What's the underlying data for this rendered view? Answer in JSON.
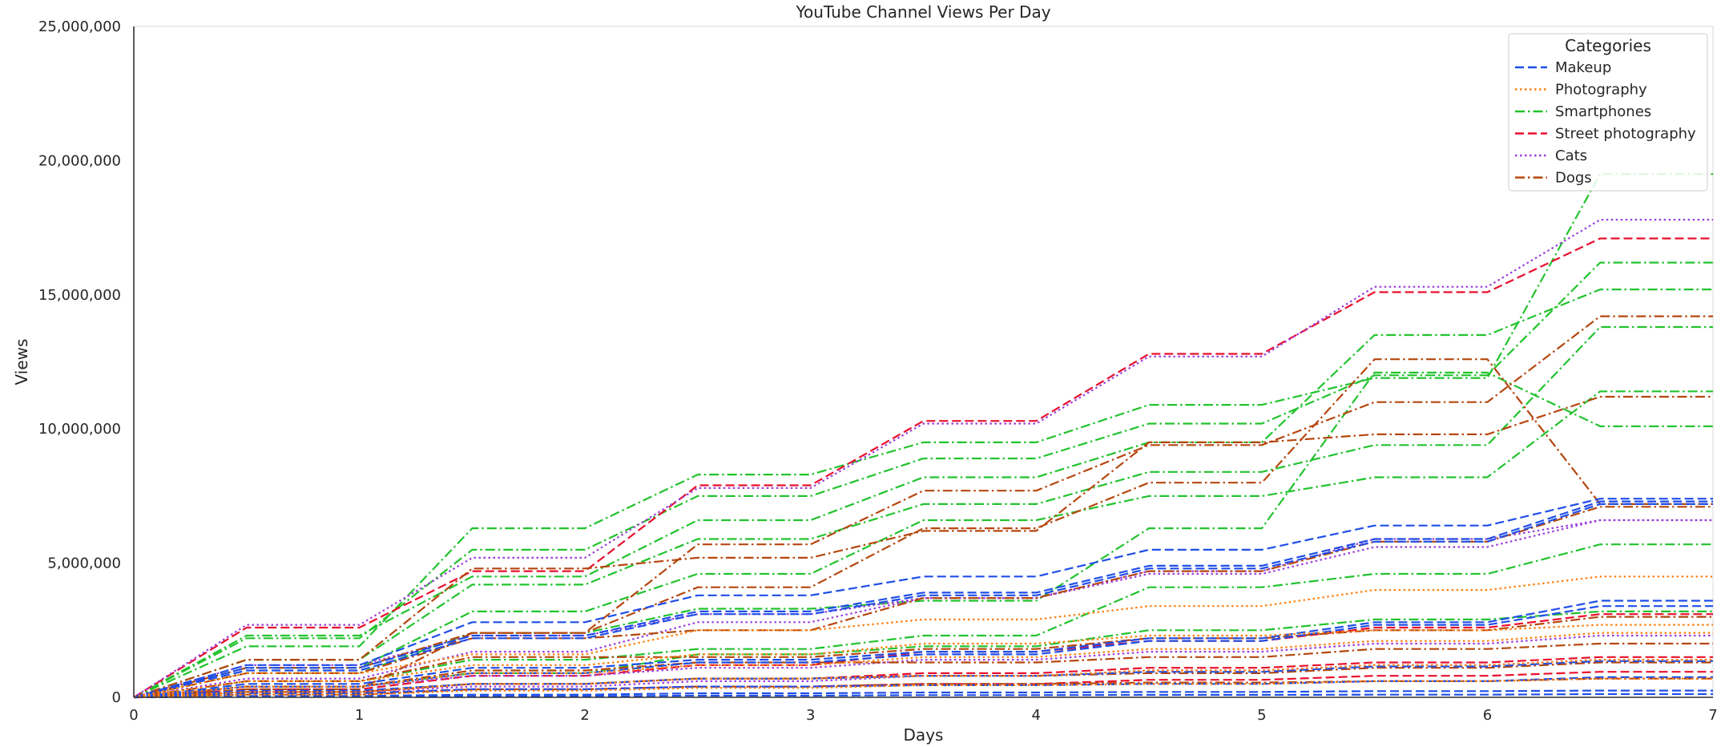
{
  "chart_data": {
    "type": "line",
    "title": "YouTube Channel Views Per Day",
    "xlabel": "Days",
    "ylabel": "Views",
    "xlim": [
      0,
      7
    ],
    "ylim": [
      0,
      25000000
    ],
    "x_ticks": [
      0,
      1,
      2,
      3,
      4,
      5,
      6,
      7
    ],
    "x_tick_labels": [
      "0",
      "1",
      "2",
      "3",
      "4",
      "5",
      "6",
      "7"
    ],
    "y_ticks": [
      0,
      5000000,
      10000000,
      15000000,
      20000000,
      25000000
    ],
    "y_tick_labels": [
      "0",
      "5,000,000",
      "10,000,000",
      "15,000,000",
      "20,000,000",
      "25,000,000"
    ],
    "legend": {
      "title": "Categories",
      "placement": "top-right",
      "entries": [
        {
          "name": "Makeup",
          "color": "#1f4ee8",
          "dash": "dashed"
        },
        {
          "name": "Photography",
          "color": "#ff7f0e",
          "dash": "dotted"
        },
        {
          "name": "Smartphones",
          "color": "#22c32e",
          "dash": "dashdot"
        },
        {
          "name": "Street photography",
          "color": "#e8102d",
          "dash": "dashed"
        },
        {
          "name": "Cats",
          "color": "#9b3ddb",
          "dash": "dotted"
        },
        {
          "name": "Dogs",
          "color": "#b5470f",
          "dash": "dashdot"
        }
      ]
    },
    "x": [
      0,
      0.5,
      1,
      1.5,
      2,
      2.5,
      3,
      3.5,
      4,
      4.5,
      5,
      5.5,
      6,
      6.5,
      7
    ],
    "series": [
      {
        "category": "Smartphones",
        "values": [
          0,
          1900000,
          1900000,
          6300000,
          6300000,
          8300000,
          8300000,
          9500000,
          9500000,
          10900000,
          10900000,
          11900000,
          11900000,
          19500000,
          19500000
        ]
      },
      {
        "category": "Smartphones",
        "values": [
          0,
          2200000,
          2200000,
          5500000,
          5500000,
          7500000,
          7500000,
          8900000,
          8900000,
          10200000,
          10200000,
          12000000,
          12000000,
          16200000,
          16200000
        ]
      },
      {
        "category": "Smartphones",
        "values": [
          0,
          2300000,
          2300000,
          4500000,
          4500000,
          6600000,
          6600000,
          8200000,
          8200000,
          9500000,
          9500000,
          13500000,
          13500000,
          15200000,
          15200000
        ]
      },
      {
        "category": "Smartphones",
        "values": [
          0,
          1400000,
          1400000,
          4200000,
          4200000,
          5900000,
          5900000,
          7200000,
          7200000,
          8400000,
          8400000,
          9400000,
          9400000,
          13800000,
          13800000
        ]
      },
      {
        "category": "Smartphones",
        "values": [
          0,
          1100000,
          1100000,
          3200000,
          3200000,
          4600000,
          4600000,
          6600000,
          6600000,
          7500000,
          7500000,
          8200000,
          8200000,
          11400000,
          11400000
        ]
      },
      {
        "category": "Smartphones",
        "values": [
          0,
          900000,
          900000,
          2400000,
          2400000,
          3300000,
          3300000,
          3600000,
          3600000,
          6300000,
          6300000,
          12100000,
          12100000,
          10100000,
          10100000
        ]
      },
      {
        "category": "Smartphones",
        "values": [
          0,
          600000,
          600000,
          1400000,
          1400000,
          1800000,
          1800000,
          2300000,
          2300000,
          4100000,
          4100000,
          4600000,
          4600000,
          5700000,
          5700000
        ]
      },
      {
        "category": "Smartphones",
        "values": [
          0,
          400000,
          400000,
          900000,
          900000,
          1600000,
          1600000,
          1900000,
          1900000,
          2500000,
          2500000,
          2900000,
          2900000,
          3200000,
          3200000
        ]
      },
      {
        "category": "Street photography",
        "values": [
          0,
          2600000,
          2600000,
          4700000,
          4700000,
          7900000,
          7900000,
          10300000,
          10300000,
          12800000,
          12800000,
          15100000,
          15100000,
          17100000,
          17100000
        ]
      },
      {
        "category": "Street photography",
        "values": [
          0,
          300000,
          300000,
          800000,
          800000,
          1200000,
          1200000,
          1700000,
          1700000,
          2100000,
          2100000,
          2600000,
          2600000,
          3100000,
          3100000
        ]
      },
      {
        "category": "Street photography",
        "values": [
          0,
          200000,
          200000,
          500000,
          500000,
          700000,
          700000,
          900000,
          900000,
          1100000,
          1100000,
          1300000,
          1300000,
          1500000,
          1500000
        ]
      },
      {
        "category": "Street photography",
        "values": [
          0,
          150000,
          150000,
          300000,
          300000,
          400000,
          400000,
          500000,
          500000,
          650000,
          650000,
          800000,
          800000,
          950000,
          950000
        ]
      },
      {
        "category": "Cats",
        "values": [
          0,
          2700000,
          2700000,
          5200000,
          5200000,
          7800000,
          7800000,
          10200000,
          10200000,
          12700000,
          12700000,
          15300000,
          15300000,
          17800000,
          17800000
        ]
      },
      {
        "category": "Cats",
        "values": [
          0,
          1200000,
          1200000,
          2300000,
          2300000,
          3100000,
          3100000,
          3700000,
          3700000,
          4600000,
          4600000,
          5600000,
          5600000,
          6600000,
          6600000
        ]
      },
      {
        "category": "Cats",
        "values": [
          0,
          700000,
          700000,
          1700000,
          1700000,
          2800000,
          2800000,
          3700000,
          3700000,
          4700000,
          4700000,
          5900000,
          5900000,
          6600000,
          6600000
        ]
      },
      {
        "category": "Cats",
        "values": [
          0,
          400000,
          400000,
          800000,
          800000,
          1100000,
          1100000,
          1400000,
          1400000,
          1700000,
          1700000,
          2000000,
          2000000,
          2300000,
          2300000
        ]
      },
      {
        "category": "Cats",
        "values": [
          0,
          200000,
          200000,
          400000,
          400000,
          600000,
          600000,
          800000,
          800000,
          1000000,
          1000000,
          1200000,
          1200000,
          1400000,
          1400000
        ]
      },
      {
        "category": "Dogs",
        "values": [
          0,
          300000,
          300000,
          2400000,
          2400000,
          5700000,
          5700000,
          7700000,
          7700000,
          9400000,
          9400000,
          11000000,
          11000000,
          14200000,
          14200000
        ]
      },
      {
        "category": "Dogs",
        "values": [
          0,
          1400000,
          1400000,
          4800000,
          4800000,
          5200000,
          5200000,
          6200000,
          6200000,
          9500000,
          9500000,
          9800000,
          9800000,
          11200000,
          11200000
        ]
      },
      {
        "category": "Dogs",
        "values": [
          0,
          1100000,
          1100000,
          2400000,
          2400000,
          4100000,
          4100000,
          6300000,
          6300000,
          8000000,
          8000000,
          12600000,
          12600000,
          7200000,
          7200000
        ]
      },
      {
        "category": "Dogs",
        "values": [
          0,
          900000,
          900000,
          2200000,
          2200000,
          2500000,
          2500000,
          3700000,
          3700000,
          4700000,
          4700000,
          5800000,
          5800000,
          7100000,
          7100000
        ]
      },
      {
        "category": "Dogs",
        "values": [
          0,
          600000,
          600000,
          1500000,
          1500000,
          1500000,
          1500000,
          1800000,
          1800000,
          2200000,
          2200000,
          2500000,
          2500000,
          3000000,
          3000000
        ]
      },
      {
        "category": "Dogs",
        "values": [
          0,
          400000,
          400000,
          1000000,
          1000000,
          1300000,
          1300000,
          1300000,
          1300000,
          1500000,
          1500000,
          1800000,
          1800000,
          2000000,
          2000000
        ]
      },
      {
        "category": "Dogs",
        "values": [
          0,
          200000,
          200000,
          500000,
          500000,
          700000,
          700000,
          800000,
          800000,
          900000,
          900000,
          1100000,
          1100000,
          1300000,
          1300000
        ]
      },
      {
        "category": "Dogs",
        "values": [
          0,
          100000,
          100000,
          300000,
          300000,
          400000,
          400000,
          500000,
          500000,
          550000,
          550000,
          600000,
          600000,
          700000,
          700000
        ]
      },
      {
        "category": "Makeup",
        "values": [
          0,
          1200000,
          1200000,
          2800000,
          2800000,
          3800000,
          3800000,
          4500000,
          4500000,
          5500000,
          5500000,
          6400000,
          6400000,
          7400000,
          7400000
        ]
      },
      {
        "category": "Makeup",
        "values": [
          0,
          1100000,
          1100000,
          2300000,
          2300000,
          3200000,
          3200000,
          3900000,
          3900000,
          4900000,
          4900000,
          5900000,
          5900000,
          7300000,
          7300000
        ]
      },
      {
        "category": "Makeup",
        "values": [
          0,
          1000000,
          1000000,
          2200000,
          2200000,
          3100000,
          3100000,
          3800000,
          3800000,
          4800000,
          4800000,
          5800000,
          5800000,
          7200000,
          7200000
        ]
      },
      {
        "category": "Makeup",
        "values": [
          0,
          500000,
          500000,
          1100000,
          1100000,
          1400000,
          1400000,
          1700000,
          1700000,
          2200000,
          2200000,
          2800000,
          2800000,
          3600000,
          3600000
        ]
      },
      {
        "category": "Makeup",
        "values": [
          0,
          400000,
          400000,
          900000,
          900000,
          1300000,
          1300000,
          1600000,
          1600000,
          2100000,
          2100000,
          2700000,
          2700000,
          3400000,
          3400000
        ]
      },
      {
        "category": "Makeup",
        "values": [
          0,
          250000,
          250000,
          500000,
          500000,
          700000,
          700000,
          800000,
          800000,
          950000,
          950000,
          1150000,
          1150000,
          1350000,
          1350000
        ]
      },
      {
        "category": "Makeup",
        "values": [
          0,
          150000,
          150000,
          300000,
          300000,
          400000,
          400000,
          450000,
          450000,
          500000,
          500000,
          600000,
          600000,
          750000,
          750000
        ]
      },
      {
        "category": "Makeup",
        "values": [
          0,
          50000,
          50000,
          100000,
          100000,
          150000,
          150000,
          180000,
          180000,
          200000,
          200000,
          230000,
          230000,
          250000,
          250000
        ]
      },
      {
        "category": "Makeup",
        "values": [
          0,
          20000,
          20000,
          40000,
          40000,
          60000,
          60000,
          80000,
          80000,
          90000,
          90000,
          100000,
          100000,
          120000,
          120000
        ]
      },
      {
        "category": "Photography",
        "values": [
          0,
          900000,
          900000,
          1600000,
          1600000,
          2500000,
          2500000,
          2900000,
          2900000,
          3400000,
          3400000,
          4000000,
          4000000,
          4500000,
          4500000
        ]
      },
      {
        "category": "Photography",
        "values": [
          0,
          600000,
          600000,
          1200000,
          1200000,
          1600000,
          1600000,
          2000000,
          2000000,
          2300000,
          2300000,
          2500000,
          2500000,
          2700000,
          2700000
        ]
      },
      {
        "category": "Photography",
        "values": [
          0,
          400000,
          400000,
          900000,
          900000,
          1200000,
          1200000,
          1500000,
          1500000,
          1800000,
          1800000,
          2100000,
          2100000,
          2400000,
          2400000
        ]
      },
      {
        "category": "Photography",
        "values": [
          0,
          200000,
          200000,
          500000,
          500000,
          700000,
          700000,
          800000,
          800000,
          1000000,
          1000000,
          1200000,
          1200000,
          1400000,
          1400000
        ]
      },
      {
        "category": "Photography",
        "values": [
          0,
          100000,
          100000,
          250000,
          250000,
          350000,
          350000,
          450000,
          450000,
          500000,
          500000,
          600000,
          600000,
          700000,
          700000
        ]
      }
    ]
  }
}
